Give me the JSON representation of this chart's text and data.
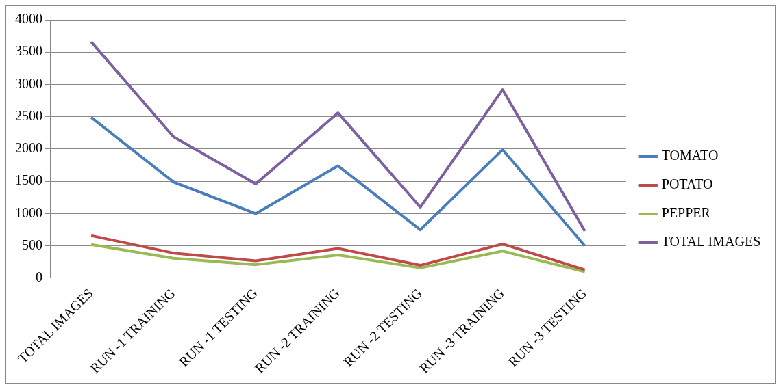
{
  "chart_data": {
    "type": "line",
    "categories": [
      "TOTAL IMAGES",
      "RUN -1 TRAINING",
      "RUN -1 TESTING",
      "RUN -2 TRAINING",
      "RUN -2 TESTING",
      "RUN -3 TRAINING",
      "RUN -3 TESTING"
    ],
    "series": [
      {
        "name": "TOMATO",
        "color": "#4a7ebb",
        "values": [
          2490,
          1490,
          1000,
          1740,
          750,
          1990,
          500
        ]
      },
      {
        "name": "POTATO",
        "color": "#be4b48",
        "values": [
          660,
          390,
          270,
          460,
          200,
          530,
          130
        ]
      },
      {
        "name": "PEPPER",
        "color": "#98b954",
        "values": [
          520,
          310,
          210,
          360,
          160,
          420,
          100
        ]
      },
      {
        "name": "TOTAL IMAGES",
        "color": "#7d60a0",
        "values": [
          3660,
          2190,
          1460,
          2560,
          1100,
          2920,
          730
        ]
      }
    ],
    "ylim": [
      0,
      4000
    ],
    "yticks": [
      0,
      500,
      1000,
      1500,
      2000,
      2500,
      3000,
      3500,
      4000
    ],
    "grid": "y",
    "legend": "right",
    "marker": "none",
    "line_style": "solid"
  }
}
